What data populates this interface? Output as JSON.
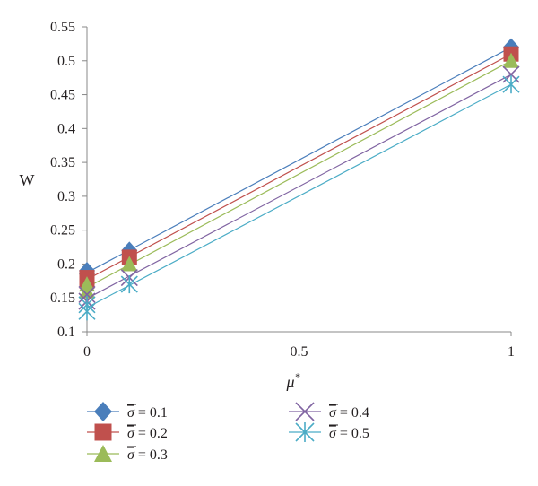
{
  "chart_data": {
    "type": "scatter",
    "title": "",
    "xlabel": "μ",
    "xlabel_superscript": "*",
    "ylabel": "W",
    "xlim": [
      0,
      1
    ],
    "ylim": [
      0.1,
      0.55
    ],
    "xticks": [
      "0",
      "0.5",
      "1"
    ],
    "yticks": [
      "0.1",
      "0.15",
      "0.2",
      "0.25",
      "0.3",
      "0.35",
      "0.4",
      "0.45",
      "0.5",
      "0.55"
    ],
    "grid": false,
    "legend_position": "bottom",
    "trendlines": "linear",
    "series": [
      {
        "name": "σ = 0.1",
        "sigma_value": "0.1",
        "marker": "diamond",
        "color": "#4a7ebb",
        "x": [
          0,
          0,
          0.1,
          1
        ],
        "y": [
          0.185,
          0.19,
          0.22,
          0.52
        ]
      },
      {
        "name": "σ = 0.2",
        "sigma_value": "0.2",
        "marker": "square",
        "color": "#c0504d",
        "x": [
          0,
          0,
          0.1,
          1
        ],
        "y": [
          0.175,
          0.18,
          0.21,
          0.51
        ]
      },
      {
        "name": "σ = 0.3",
        "sigma_value": "0.3",
        "marker": "triangle",
        "color": "#9bbb59",
        "x": [
          0,
          0,
          0.1,
          1
        ],
        "y": [
          0.16,
          0.17,
          0.2,
          0.5
        ]
      },
      {
        "name": "σ = 0.4",
        "sigma_value": "0.4",
        "marker": "x",
        "color": "#8064a2",
        "x": [
          0,
          0,
          0.1,
          1
        ],
        "y": [
          0.145,
          0.155,
          0.18,
          0.48
        ]
      },
      {
        "name": "σ = 0.5",
        "sigma_value": "0.5",
        "marker": "star",
        "color": "#4bacc6",
        "x": [
          0,
          0,
          0.1,
          1
        ],
        "y": [
          0.13,
          0.14,
          0.17,
          0.465
        ]
      }
    ]
  }
}
